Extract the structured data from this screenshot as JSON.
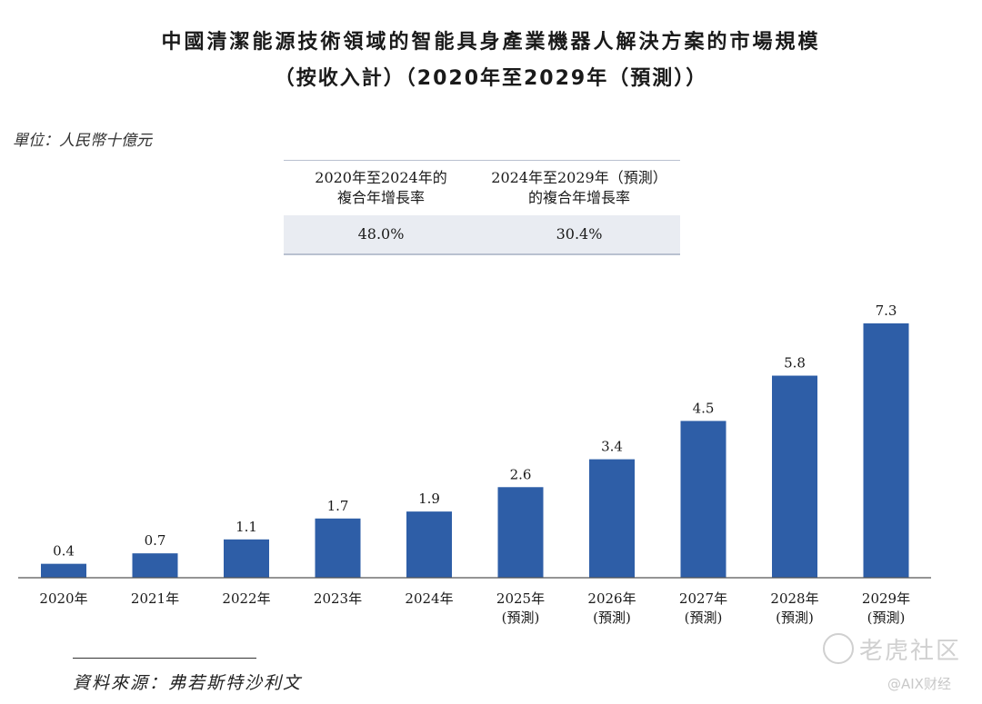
{
  "title_line1": "中國清潔能源技術領域的智能具身產業機器人解決方案的市場規模",
  "title_line2": "（按收入計）（2020年至2029年（預測））",
  "unit": "單位：人民幣十億元",
  "cagr_table": {
    "col1_header_line1": "2020年至2024年的",
    "col1_header_line2": "複合年增長率",
    "col2_header_line1": "2024年至2029年（預測）",
    "col2_header_line2": "的複合年增長率",
    "col1_value": "48.0%",
    "col2_value": "30.4%"
  },
  "chart_data": {
    "type": "bar",
    "categories": [
      "2020年",
      "2021年",
      "2022年",
      "2023年",
      "2024年",
      "2025年",
      "2026年",
      "2027年",
      "2028年",
      "2029年"
    ],
    "category_sublabels": [
      "",
      "",
      "",
      "",
      "",
      "(預測)",
      "(預測)",
      "(預測)",
      "(預測)",
      "(預測)"
    ],
    "values": [
      0.4,
      0.7,
      1.1,
      1.7,
      1.9,
      2.6,
      3.4,
      4.5,
      5.8,
      7.3
    ],
    "value_labels": [
      "0.4",
      "0.7",
      "1.1",
      "1.7",
      "1.9",
      "2.6",
      "3.4",
      "4.5",
      "5.8",
      "7.3"
    ],
    "ylim": [
      0,
      7.3
    ],
    "bar_color": "#2e5ea7",
    "grid": false
  },
  "source": "資料來源：弗若斯特沙利文",
  "watermark_main": "老虎社区",
  "watermark_sub": "@AIX财经"
}
